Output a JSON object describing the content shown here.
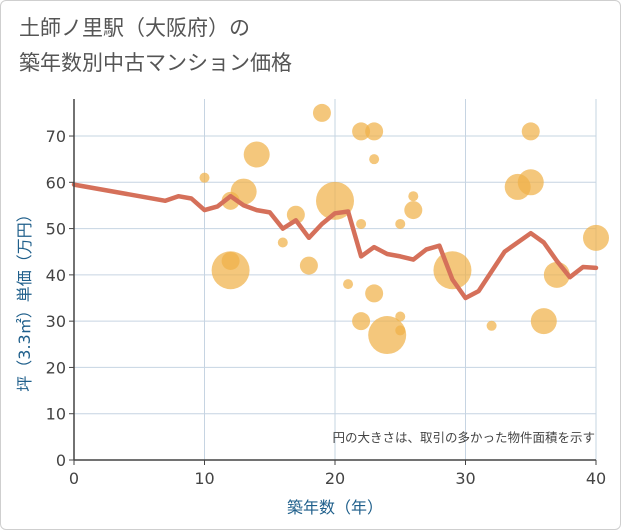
{
  "title": {
    "line1": "土師ノ里駅（大阪府）の",
    "line2": "築年数別中古マンション価格"
  },
  "chart_data": {
    "type": "scatter",
    "xlabel": "築年数（年）",
    "ylabel": "坪（3.3㎡）単価（万円）",
    "xlim": [
      0,
      40
    ],
    "ylim": [
      0,
      78
    ],
    "xticks": [
      0,
      10,
      20,
      30,
      40
    ],
    "yticks": [
      0,
      10,
      20,
      30,
      40,
      50,
      60,
      70
    ],
    "grid": true,
    "note": "円の大きさは、取引の多かった物件面積を示す",
    "colors": {
      "bubble": "#f0b24a",
      "line": "#d5705a",
      "grid": "#c6d4e2",
      "axis": "#444444"
    },
    "bubbles": [
      {
        "x": 10,
        "y": 61,
        "s": 1
      },
      {
        "x": 12,
        "y": 56,
        "s": 2
      },
      {
        "x": 12,
        "y": 43,
        "s": 2
      },
      {
        "x": 12,
        "y": 41,
        "s": 5
      },
      {
        "x": 13,
        "y": 58,
        "s": 3
      },
      {
        "x": 14,
        "y": 66,
        "s": 3
      },
      {
        "x": 16,
        "y": 47,
        "s": 1
      },
      {
        "x": 17,
        "y": 53,
        "s": 2
      },
      {
        "x": 18,
        "y": 42,
        "s": 2
      },
      {
        "x": 19,
        "y": 75,
        "s": 2
      },
      {
        "x": 20,
        "y": 56,
        "s": 5
      },
      {
        "x": 21,
        "y": 38,
        "s": 1
      },
      {
        "x": 22,
        "y": 71,
        "s": 2
      },
      {
        "x": 22,
        "y": 51,
        "s": 1
      },
      {
        "x": 22,
        "y": 30,
        "s": 2
      },
      {
        "x": 23,
        "y": 71,
        "s": 2
      },
      {
        "x": 23,
        "y": 65,
        "s": 1
      },
      {
        "x": 23,
        "y": 36,
        "s": 2
      },
      {
        "x": 24,
        "y": 27,
        "s": 5
      },
      {
        "x": 25,
        "y": 51,
        "s": 1
      },
      {
        "x": 25,
        "y": 31,
        "s": 1
      },
      {
        "x": 25,
        "y": 28,
        "s": 1
      },
      {
        "x": 26,
        "y": 57,
        "s": 1
      },
      {
        "x": 26,
        "y": 54,
        "s": 2
      },
      {
        "x": 29,
        "y": 41,
        "s": 5
      },
      {
        "x": 32,
        "y": 29,
        "s": 1
      },
      {
        "x": 34,
        "y": 59,
        "s": 3
      },
      {
        "x": 35,
        "y": 71,
        "s": 2
      },
      {
        "x": 35,
        "y": 60,
        "s": 3
      },
      {
        "x": 36,
        "y": 30,
        "s": 3
      },
      {
        "x": 37,
        "y": 40,
        "s": 3
      },
      {
        "x": 40,
        "y": 48,
        "s": 3
      }
    ],
    "trend": {
      "x": [
        0,
        7,
        8,
        9,
        10,
        11,
        12,
        13,
        14,
        15,
        16,
        17,
        18,
        19,
        20,
        21,
        22,
        23,
        24,
        25,
        26,
        27,
        28,
        29,
        30,
        31,
        33,
        35,
        36,
        37,
        38,
        39,
        40
      ],
      "y": [
        59.5,
        56,
        57,
        56.5,
        54,
        54.8,
        57,
        55,
        54,
        53.5,
        50,
        51.8,
        48,
        51,
        53.3,
        53.7,
        44,
        46,
        44.5,
        44,
        43.3,
        45.5,
        46.3,
        39,
        35,
        36.5,
        45,
        49,
        47,
        43,
        39.5,
        41.7,
        41.5
      ]
    }
  }
}
